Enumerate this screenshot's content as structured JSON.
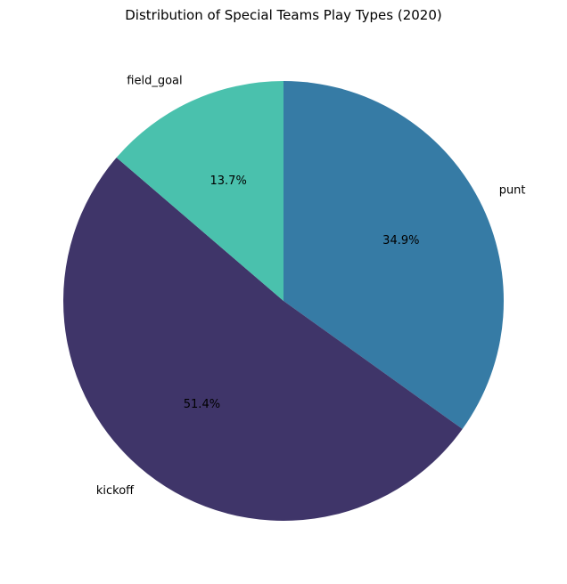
{
  "chart_data": {
    "type": "pie",
    "title": "Distribution of Special Teams Play Types (2020)",
    "slices": [
      {
        "label": "punt",
        "value": 34.9,
        "pct_text": "34.9%",
        "color": "#367ba5"
      },
      {
        "label": "kickoff",
        "value": 51.4,
        "pct_text": "51.4%",
        "color": "#3f3569"
      },
      {
        "label": "field_goal",
        "value": 13.7,
        "pct_text": "13.7%",
        "color": "#4ac1ad"
      }
    ],
    "start_angle_deg": 90,
    "direction": "clockwise"
  }
}
